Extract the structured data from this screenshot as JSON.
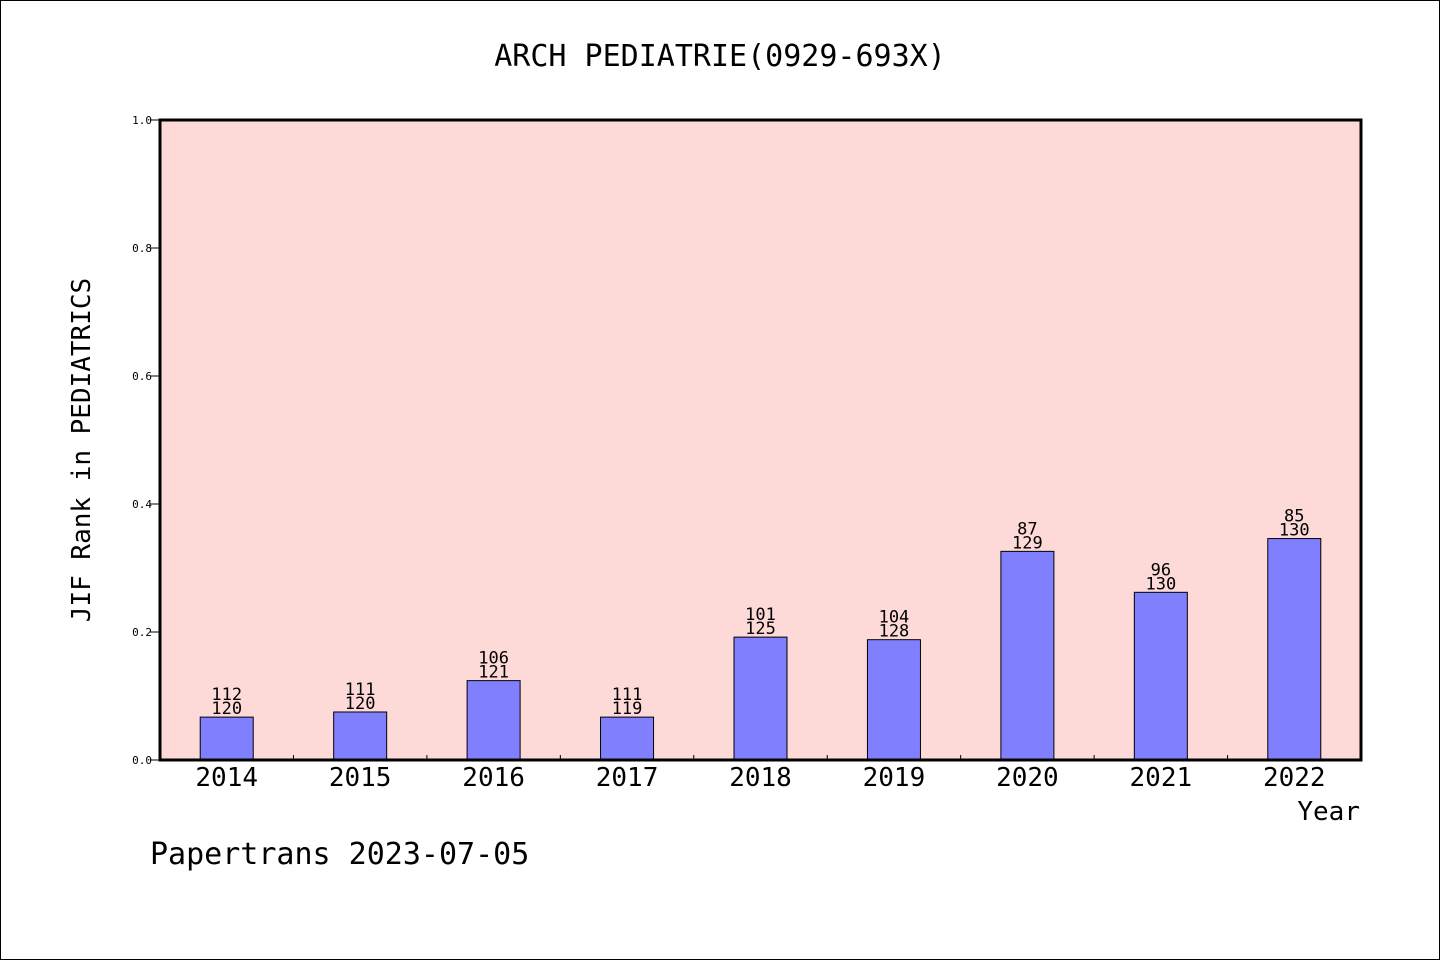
{
  "chart_data": {
    "type": "bar",
    "title": "ARCH PEDIATRIE(0929-693X)",
    "xlabel": "Year",
    "ylabel": "JIF Rank in PEDIATRICS",
    "ylim": [
      0,
      1.0
    ],
    "yticks": [
      "0.0",
      "0.2",
      "0.4",
      "0.6",
      "0.8",
      "1.0"
    ],
    "grid": false,
    "categories": [
      "2014",
      "2015",
      "2016",
      "2017",
      "2018",
      "2019",
      "2020",
      "2021",
      "2022"
    ],
    "values": [
      0.067,
      0.075,
      0.124,
      0.067,
      0.192,
      0.188,
      0.326,
      0.262,
      0.346
    ],
    "rank": [
      "112",
      "111",
      "106",
      "111",
      "101",
      "104",
      "87",
      "96",
      "85"
    ],
    "total": [
      "120",
      "120",
      "121",
      "119",
      "125",
      "128",
      "129",
      "130",
      "130"
    ],
    "colors": {
      "bar": "#8080ff",
      "plot_bg": "#fddad8",
      "axis": "#000000"
    }
  },
  "footer": {
    "credit": "Papertrans 2023-07-05"
  }
}
